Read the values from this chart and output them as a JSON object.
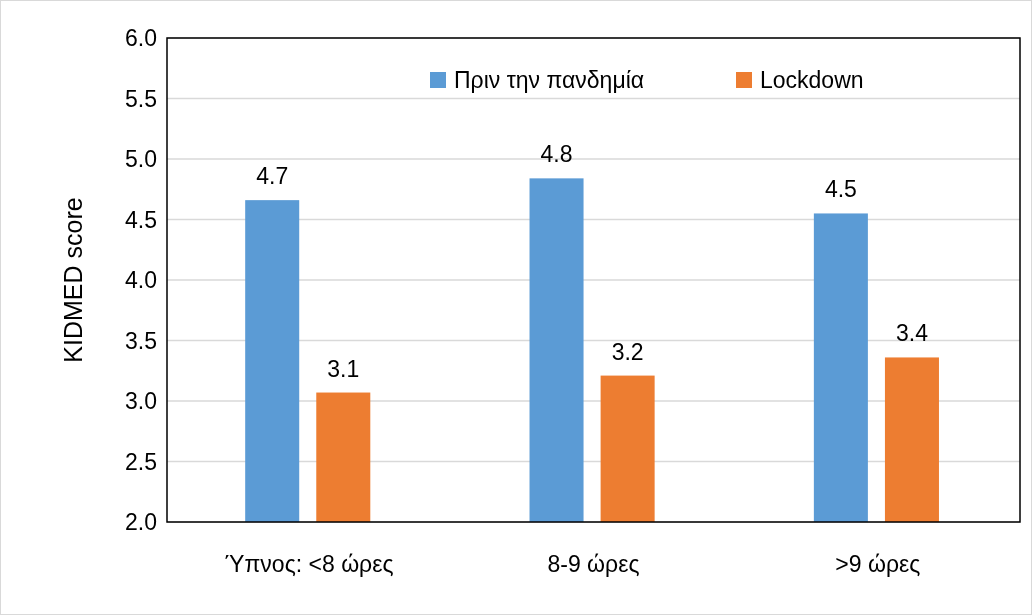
{
  "chart_data": {
    "type": "bar",
    "ylabel": "KIDMED score",
    "categories": [
      "Ύπνος: <8 ώρες",
      "8-9 ώρες",
      ">9 ώρες"
    ],
    "series": [
      {
        "name": "Πριν την πανδημία",
        "color": "#5b9bd5",
        "values": [
          4.66,
          4.84,
          4.55
        ],
        "value_labels": [
          "4.7",
          "4.8",
          "4.5"
        ]
      },
      {
        "name": "Lockdown",
        "color": "#ed7d31",
        "values": [
          3.07,
          3.21,
          3.36
        ],
        "value_labels": [
          "3.1",
          "3.2",
          "3.4"
        ]
      }
    ],
    "ylim": [
      2,
      6
    ],
    "yticks": [
      {
        "value": 2,
        "label": "2.0"
      },
      {
        "value": 2.5,
        "label": "2.5"
      },
      {
        "value": 3,
        "label": "3.0"
      },
      {
        "value": 3.5,
        "label": "3.5"
      },
      {
        "value": 4,
        "label": "4.0"
      },
      {
        "value": 4.5,
        "label": "4.5"
      },
      {
        "value": 5,
        "label": "5.0"
      },
      {
        "value": 5.5,
        "label": "5.5"
      },
      {
        "value": 6,
        "label": "6.0"
      }
    ],
    "grid": "y",
    "legend": "top right"
  }
}
